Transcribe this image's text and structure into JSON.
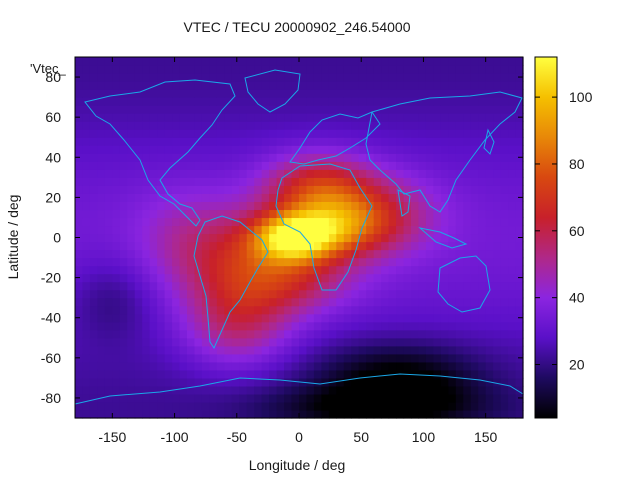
{
  "chart_data": {
    "type": "heatmap",
    "title": "VTEC / TECU 20000902_246.54000",
    "xlabel": "Longitude / deg",
    "ylabel": "Latitude / deg",
    "series_label": "'Vtec_",
    "xlim": [
      -180,
      180
    ],
    "ylim": [
      -90,
      90
    ],
    "x_ticks": [
      -150,
      -100,
      -50,
      0,
      50,
      100,
      150
    ],
    "y_ticks": [
      80,
      60,
      40,
      20,
      0,
      -20,
      -40,
      -60,
      -80
    ],
    "colorbar": {
      "min": 4,
      "max": 112,
      "ticks": [
        20,
        40,
        60,
        80,
        100
      ],
      "palette": [
        "#000000",
        "#1e0a60",
        "#5a10c8",
        "#8b25e0",
        "#b02888",
        "#c8202a",
        "#d84810",
        "#e88808",
        "#f5c000",
        "#ffff40"
      ]
    },
    "field_description": "Vertical total electron content map; background ~20-35 TECU, enhanced region over Atlantic/Africa/South America with peak ~105 TECU near lon -5, lat 0; low values ~5-10 TECU over southern polar region.",
    "blobs": [
      {
        "lon": -5,
        "lat": 0,
        "sx": 22,
        "sy": 8,
        "amp": 55
      },
      {
        "lon": 25,
        "lat": 5,
        "sx": 30,
        "sy": 10,
        "amp": 35
      },
      {
        "lon": 15,
        "lat": 25,
        "sx": 30,
        "sy": 12,
        "amp": 35
      },
      {
        "lon": 60,
        "lat": 12,
        "sx": 35,
        "sy": 14,
        "amp": 25
      },
      {
        "lon": -40,
        "lat": -15,
        "sx": 35,
        "sy": 18,
        "amp": 28
      },
      {
        "lon": -50,
        "lat": -45,
        "sx": 30,
        "sy": 15,
        "amp": 22
      },
      {
        "lon": -90,
        "lat": 0,
        "sx": 30,
        "sy": 18,
        "amp": 12
      },
      {
        "lon": 0,
        "lat": -20,
        "sx": 35,
        "sy": 12,
        "amp": 18
      },
      {
        "lon": 80,
        "lat": -70,
        "sx": 45,
        "sy": 12,
        "amp": -22
      },
      {
        "lon": 60,
        "lat": -85,
        "sx": 60,
        "sy": 8,
        "amp": -18
      },
      {
        "lon": -150,
        "lat": -30,
        "sx": 25,
        "sy": 15,
        "amp": -10
      }
    ],
    "baseline_tecu": 28
  }
}
